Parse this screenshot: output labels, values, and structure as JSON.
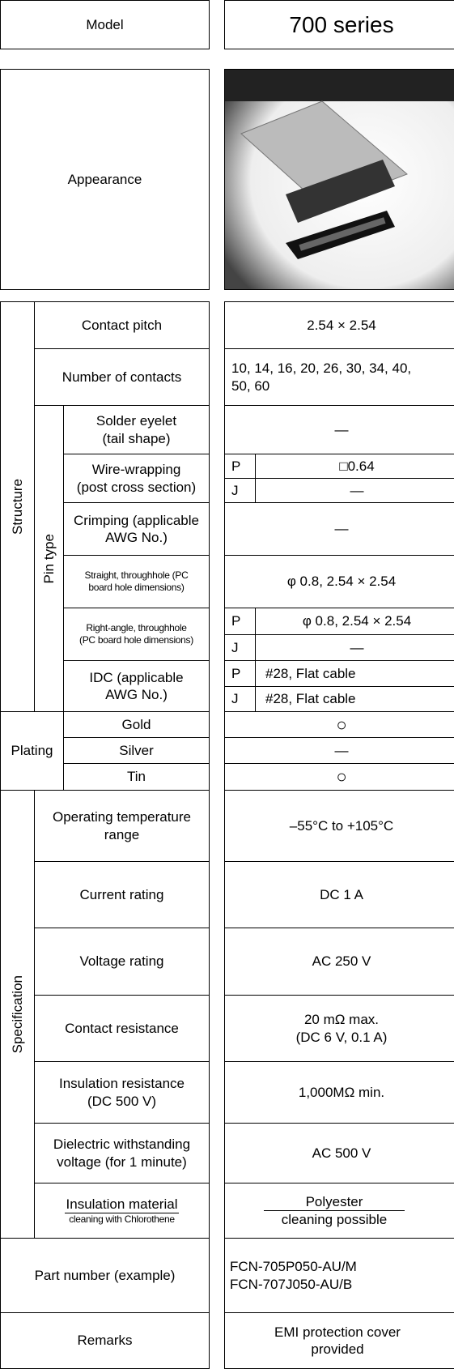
{
  "model": {
    "label": "Model",
    "value": "700 series"
  },
  "appearance": {
    "label": "Appearance"
  },
  "structure": {
    "label": "Structure",
    "pin_type_label": "Pin type",
    "rows": [
      {
        "label": "Contact pitch",
        "value": "2.54 × 2.54"
      },
      {
        "label": "Number of contacts",
        "value": "10, 14, 16, 20, 26, 30, 34, 40, 50, 60"
      },
      {
        "label": "Solder eyelet\n(tail shape)",
        "value": "—"
      },
      {
        "label": "Wire-wrapping\n(post cross section)",
        "variants": [
          {
            "key": "P",
            "value": "□0.64"
          },
          {
            "key": "J",
            "value": "—"
          }
        ]
      },
      {
        "label": "Crimping (applicable\nAWG No.)",
        "value": "—"
      },
      {
        "label": "Straight, throughhole (PC\nboard hole dimensions)",
        "value": "φ 0.8, 2.54 × 2.54"
      },
      {
        "label": "Right-angle, throughhole\n(PC board hole dimensions)",
        "variants": [
          {
            "key": "P",
            "value": "φ 0.8, 2.54 × 2.54"
          },
          {
            "key": "J",
            "value": "—"
          }
        ]
      },
      {
        "label": "IDC (applicable\nAWG No.)",
        "variants": [
          {
            "key": "P",
            "value": "#28, Flat cable"
          },
          {
            "key": "J",
            "value": "#28, Flat cable"
          }
        ]
      }
    ]
  },
  "plating": {
    "label": "Plating",
    "rows": [
      {
        "label": "Gold",
        "value": "○"
      },
      {
        "label": "Silver",
        "value": "—"
      },
      {
        "label": "Tin",
        "value": "○"
      }
    ]
  },
  "specification": {
    "label": "Specification",
    "rows": [
      {
        "label": "Operating temperature\nrange",
        "value": "–55°C to +105°C"
      },
      {
        "label": "Current rating",
        "value": "DC 1 A"
      },
      {
        "label": "Voltage rating",
        "value": "AC 250 V"
      },
      {
        "label": "Contact resistance",
        "value": "20 mΩ max.\n(DC 6 V, 0.1 A)"
      },
      {
        "label": "Insulation resistance\n(DC 500 V)",
        "value": "1,000MΩ min."
      },
      {
        "label": "Dielectric withstanding\nvoltage (for 1 minute)",
        "value": "AC 500 V"
      },
      {
        "label": "Insulation material",
        "sublabel": "cleaning with Chlorothene",
        "value": "Polyester",
        "subvalue": "cleaning possible"
      }
    ]
  },
  "part_number": {
    "label": "Part number (example)",
    "value": "FCN-705P050-AU/M\nFCN-707J050-AU/B"
  },
  "remarks": {
    "label": "Remarks",
    "value": "EMI protection cover\nprovided"
  }
}
